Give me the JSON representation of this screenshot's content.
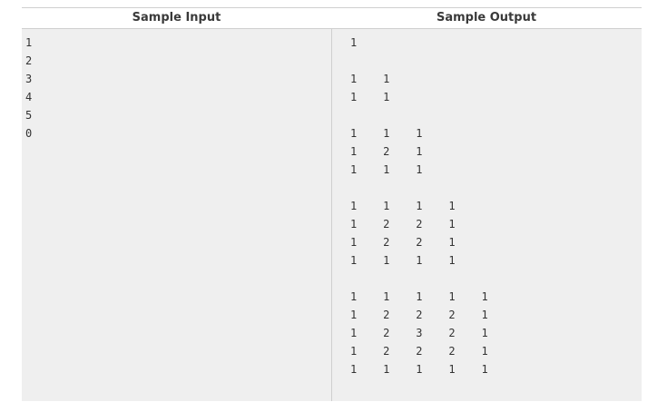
{
  "headers": {
    "input": "Sample Input",
    "output": "Sample Output"
  },
  "sample_input": "1\n2\n3\n4\n5\n0",
  "sample_output": "1\n\n1    1\n1    1\n\n1    1    1\n1    2    1\n1    1    1\n\n1    1    1    1\n1    2    2    1\n1    2    2    1\n1    1    1    1\n\n1    1    1    1    1\n1    2    2    2    1\n1    2    3    2    1\n1    2    2    2    1\n1    1    1    1    1"
}
